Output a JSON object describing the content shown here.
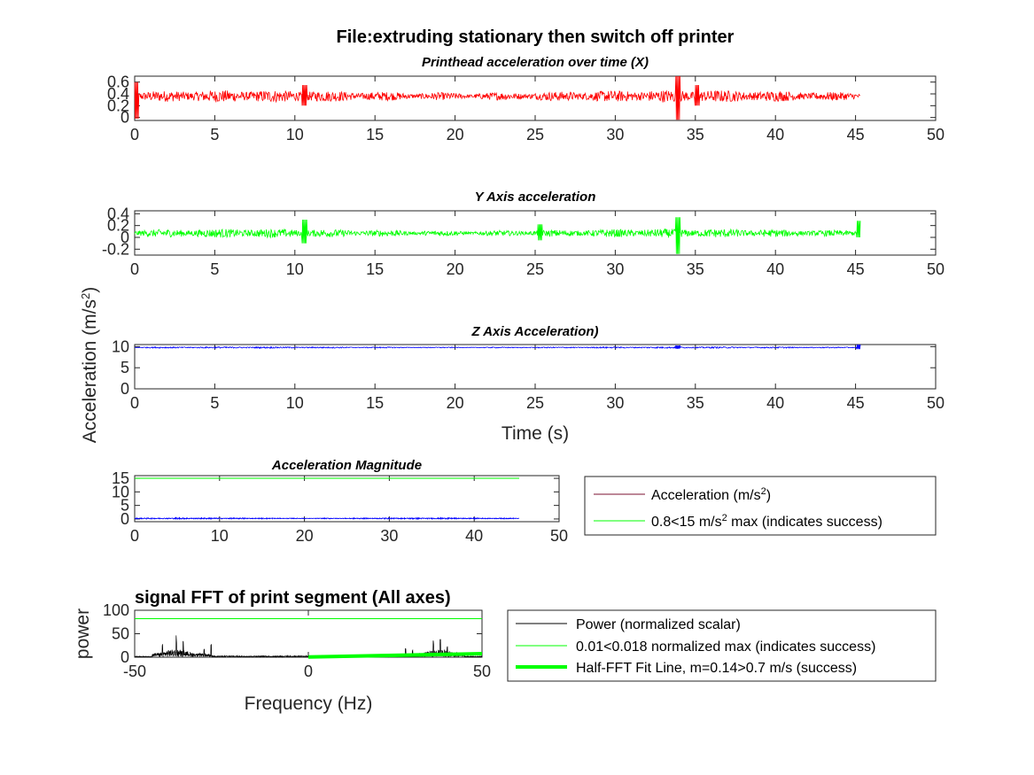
{
  "figure": {
    "title": "File:extruding stationary then switch off printer",
    "ylabel": "Acceleration (m/s",
    "ylabel_sup": "2",
    "ylabel_end": ")"
  },
  "chart_data": [
    {
      "id": "x",
      "type": "line",
      "title": "Printhead acceleration over time (X)",
      "xlabel": "",
      "xlim": [
        0,
        50
      ],
      "ylim": [
        -0.05,
        0.7
      ],
      "xticks": [
        "0",
        "5",
        "10",
        "15",
        "20",
        "25",
        "30",
        "35",
        "40",
        "45",
        "50"
      ],
      "yticks": [
        "0",
        "0.2",
        "0.4",
        "0.6"
      ],
      "grid": false,
      "series": [
        {
          "color": "#ff0000",
          "x_range": [
            0,
            45.3
          ],
          "baseline": 0.36,
          "noise_amplitude": 0.07,
          "spikes": [
            {
              "x": 0.1,
              "min": -0.02,
              "max": 0.6
            },
            {
              "x": 10.6,
              "min": 0.2,
              "max": 0.55
            },
            {
              "x": 33.9,
              "min": -0.04,
              "max": 0.7
            },
            {
              "x": 35.1,
              "min": 0.2,
              "max": 0.55
            }
          ]
        }
      ]
    },
    {
      "id": "y",
      "type": "line",
      "title": "Y Axis acceleration",
      "xlabel": "",
      "xlim": [
        0,
        50
      ],
      "ylim": [
        -0.3,
        0.45
      ],
      "xticks": [
        "0",
        "5",
        "10",
        "15",
        "20",
        "25",
        "30",
        "35",
        "40",
        "45",
        "50"
      ],
      "yticks": [
        "-0.2",
        "0",
        "0.2",
        "0.4"
      ],
      "grid": false,
      "series": [
        {
          "color": "#00ff00",
          "x_range": [
            0,
            45.3
          ],
          "baseline": 0.07,
          "noise_amplitude": 0.05,
          "spikes": [
            {
              "x": 10.6,
              "min": -0.1,
              "max": 0.3
            },
            {
              "x": 25.3,
              "min": -0.05,
              "max": 0.22
            },
            {
              "x": 33.9,
              "min": -0.28,
              "max": 0.34
            },
            {
              "x": 45.2,
              "min": 0.0,
              "max": 0.28
            }
          ]
        }
      ]
    },
    {
      "id": "z",
      "type": "line",
      "title": "Z Axis Acceleration)",
      "xlabel": "Time (s)",
      "xlim": [
        0,
        50
      ],
      "ylim": [
        0,
        10.5
      ],
      "xticks": [
        "0",
        "5",
        "10",
        "15",
        "20",
        "25",
        "30",
        "35",
        "40",
        "45",
        "50"
      ],
      "yticks": [
        "0",
        "5",
        "10"
      ],
      "grid": false,
      "series": [
        {
          "color": "#0000ff",
          "x_range": [
            0,
            45.3
          ],
          "baseline": 9.8,
          "noise_amplitude": 0.12,
          "spikes": [
            {
              "x": 33.9,
              "min": 9.5,
              "max": 10.3
            },
            {
              "x": 45.2,
              "min": 9.4,
              "max": 10.5
            }
          ]
        }
      ]
    },
    {
      "id": "mag",
      "type": "line",
      "title": "Acceleration Magnitude",
      "xlabel": "",
      "xlim": [
        0,
        50
      ],
      "ylim": [
        -1,
        16
      ],
      "xticks": [
        "0",
        "10",
        "20",
        "30",
        "40",
        "50"
      ],
      "yticks": [
        "0",
        "5",
        "10",
        "15"
      ],
      "grid": false,
      "series": [
        {
          "name": "Acceleration (m/s^2)",
          "color": "#7b1030",
          "overlay_color": "#0000ff",
          "x_range": [
            0,
            45.3
          ],
          "baseline": 0.2,
          "noise_amplitude": 0.15
        },
        {
          "name": "0.8<15 m/s^2 max (indicates success)",
          "color": "#00ff00",
          "x": [
            0,
            45.3
          ],
          "y": [
            15,
            15
          ]
        }
      ],
      "legend": {
        "entry1_pre": "Acceleration (m/s",
        "entry1_sup": "2",
        "entry1_post": ")",
        "entry2_pre": "0.8<15 m/s",
        "entry2_sup": "2",
        "entry2_post": " max (indicates success)"
      }
    },
    {
      "id": "fft",
      "type": "line",
      "title": "signal FFT of print segment (All axes)",
      "xlabel": "Frequency (Hz)",
      "ylabel": "power",
      "xlim": [
        -50,
        50
      ],
      "ylim": [
        0,
        100
      ],
      "xticks": [
        "-50",
        "0",
        "50"
      ],
      "yticks": [
        "0",
        "50",
        "100"
      ],
      "grid": false,
      "series": [
        {
          "name": "Power (normalized scalar)",
          "color": "#000000",
          "peaks": [
            {
              "x": -38,
              "height": 50
            },
            {
              "x": -36,
              "height": 35
            },
            {
              "x": -42,
              "height": 28
            },
            {
              "x": -28,
              "height": 35
            },
            {
              "x": -30,
              "height": 20
            },
            {
              "x": 38,
              "height": 50
            },
            {
              "x": 36,
              "height": 38
            },
            {
              "x": 40,
              "height": 30
            },
            {
              "x": 28,
              "height": 22
            },
            {
              "x": 30,
              "height": 15
            }
          ]
        },
        {
          "name": "0.01<0.018 normalized max (indicates success)",
          "color": "#00ff00",
          "x": [
            -50,
            50
          ],
          "y": [
            82,
            82
          ]
        },
        {
          "name": "Half-FFT Fit Line, m=0.14>0.7 m/s (success)",
          "color": "#00ff00",
          "x": [
            0,
            50
          ],
          "y": [
            0.5,
            7.5
          ]
        }
      ]
    }
  ]
}
